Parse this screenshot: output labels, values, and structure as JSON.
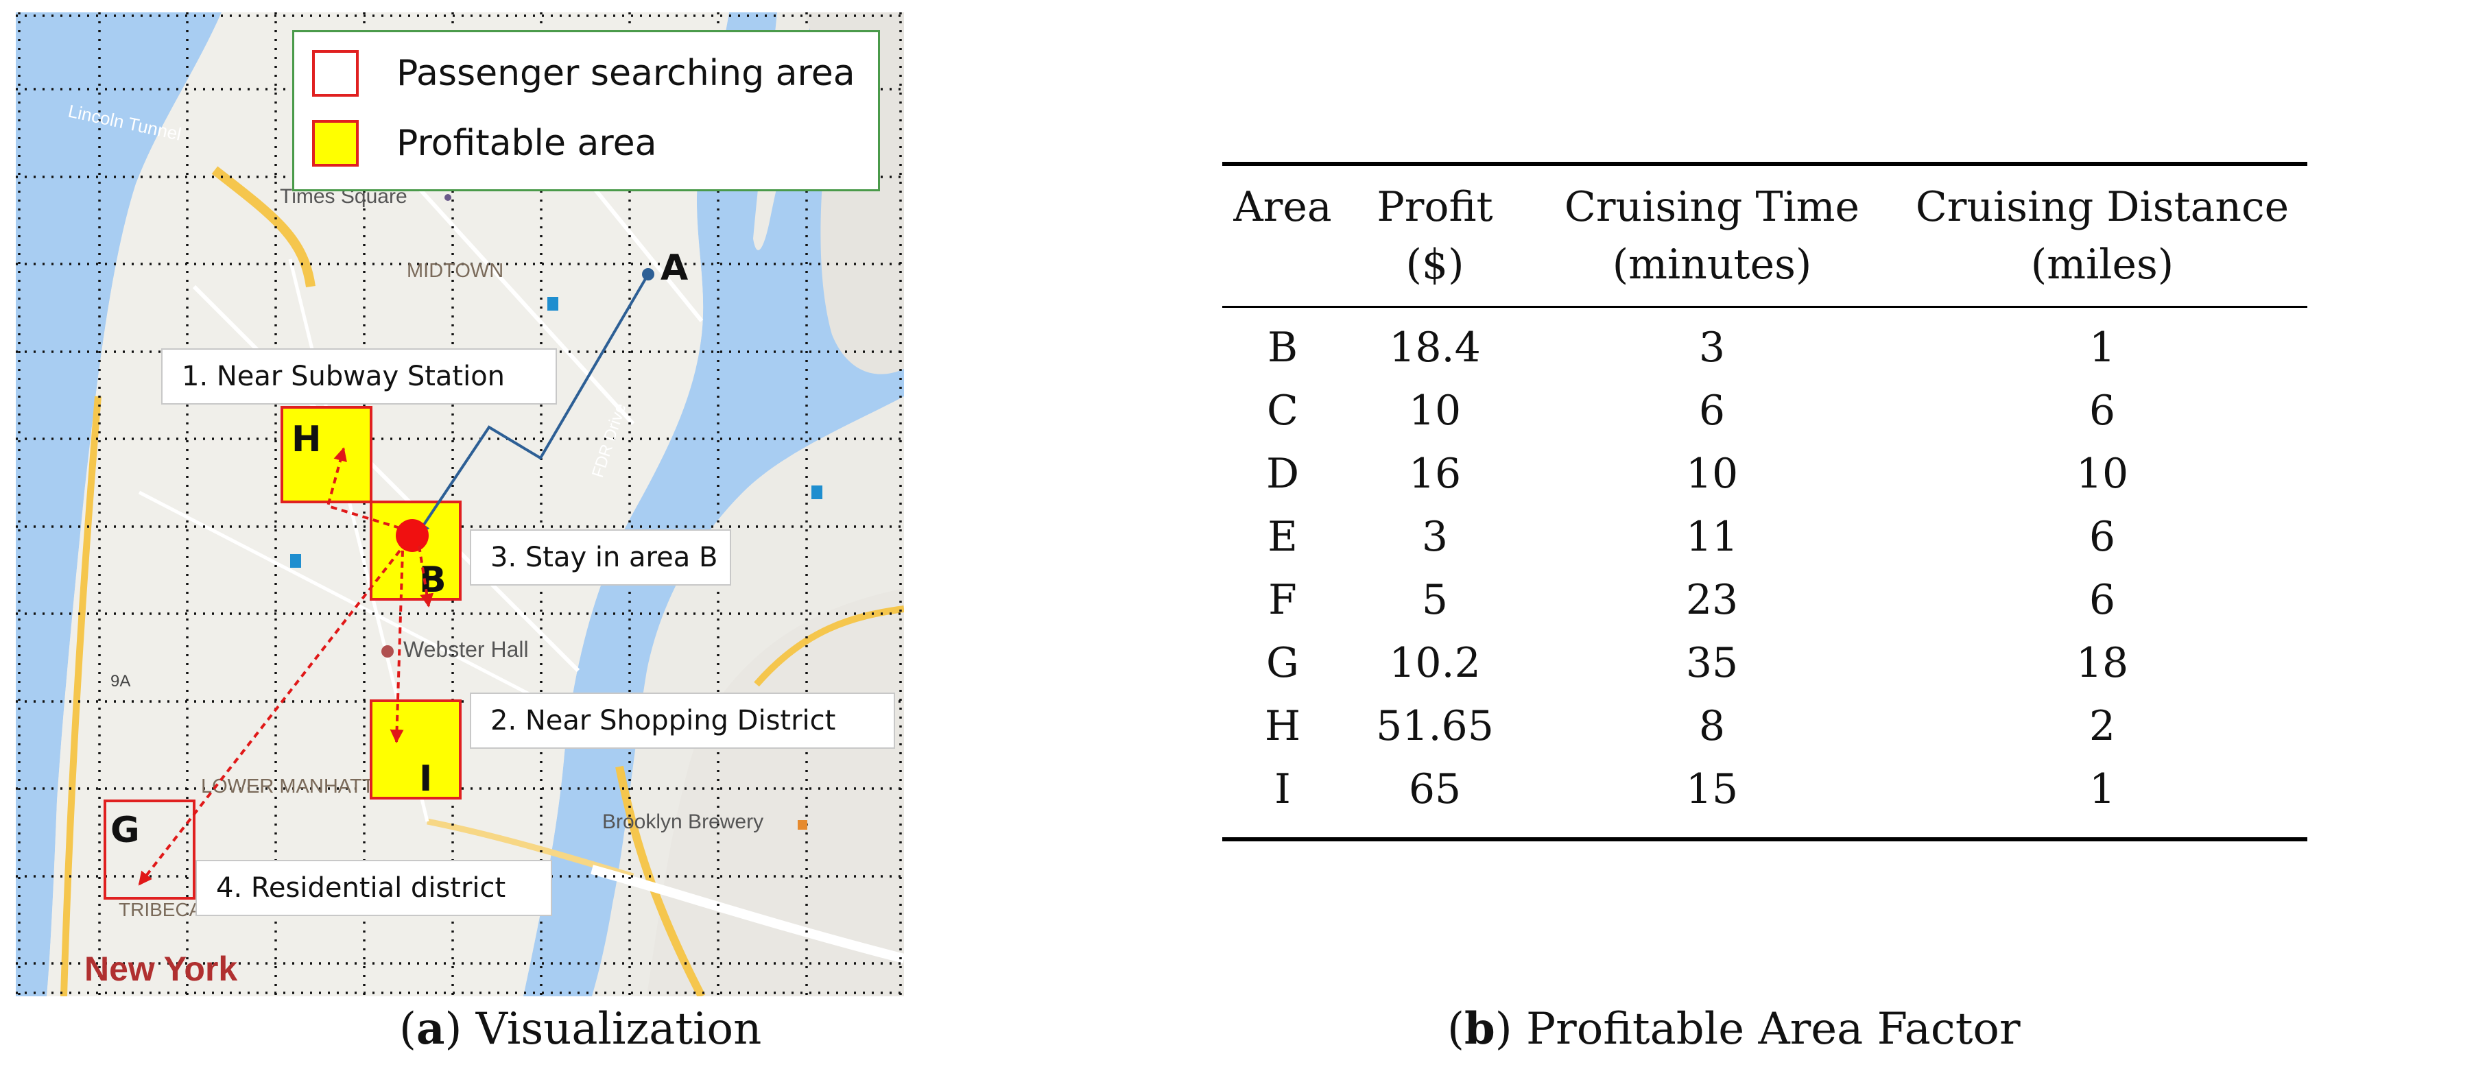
{
  "map": {
    "place_labels": [
      "Times Square",
      "MIDTOWN",
      "Webster Hall",
      "LOWER MANHATTAN",
      "TRIBECA",
      "Brooklyn Brewery",
      "New York",
      "Lincoln Tunnel",
      "FDR Drive",
      "9A"
    ],
    "legend": [
      {
        "label": "Passenger searching area",
        "fill": "#ffffff",
        "border": "#e02020"
      },
      {
        "label": "Profitable area",
        "fill": "#ffff00",
        "border": "#e02020"
      }
    ],
    "area_letters": {
      "A": "A",
      "B": "B",
      "G": "G",
      "H": "H",
      "I": "I"
    },
    "callouts": {
      "c1": "1. Near Subway Station",
      "c2": "2. Near Shopping District",
      "c3": "3. Stay in area B",
      "c4": "4. Residential district"
    },
    "colors": {
      "water": "#a8cdf2",
      "land": "#ecebe6",
      "route": "#2d5f95",
      "red_route": "#e01818",
      "profitable_fill": "#ffff00",
      "grid": "#000000"
    }
  },
  "captions": {
    "a_letter": "a",
    "a_text": " Visualization",
    "b_letter": "b",
    "b_text": " Profitable Area Factor"
  },
  "table": {
    "headers": [
      [
        "Area",
        ""
      ],
      [
        "Profit",
        "($)"
      ],
      [
        "Cruising Time",
        "(minutes)"
      ],
      [
        "Cruising Distance",
        "(miles)"
      ]
    ],
    "rows": [
      [
        "B",
        "18.4",
        "3",
        "1"
      ],
      [
        "C",
        "10",
        "6",
        "6"
      ],
      [
        "D",
        "16",
        "10",
        "10"
      ],
      [
        "E",
        "3",
        "11",
        "6"
      ],
      [
        "F",
        "5",
        "23",
        "6"
      ],
      [
        "G",
        "10.2",
        "35",
        "18"
      ],
      [
        "H",
        "51.65",
        "8",
        "2"
      ],
      [
        "I",
        "65",
        "15",
        "1"
      ]
    ]
  }
}
